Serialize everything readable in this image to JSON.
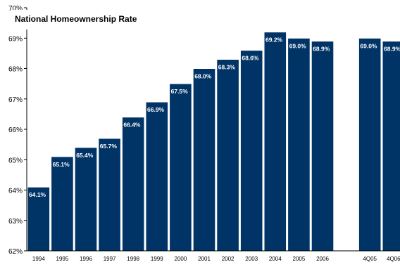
{
  "chart_data": {
    "type": "bar",
    "title": "National Homeownership Rate",
    "ylim": [
      62,
      70
    ],
    "yticks": [
      "62%",
      "63%",
      "64%",
      "65%",
      "66%",
      "67%",
      "68%",
      "69%",
      "70%"
    ],
    "grid": false,
    "categories": [
      "1994",
      "1995",
      "1996",
      "1997",
      "1998",
      "1999",
      "2000",
      "2001",
      "2002",
      "2003",
      "2004",
      "2005",
      "2006",
      "",
      "4Q05",
      "4Q06"
    ],
    "values": [
      64.1,
      65.1,
      65.4,
      65.7,
      66.4,
      66.9,
      67.5,
      68.0,
      68.3,
      68.6,
      69.2,
      69.0,
      68.9,
      null,
      69.0,
      68.9
    ],
    "labels": [
      "64.1%",
      "65.1%",
      "65.4%",
      "65.7%",
      "66.4%",
      "66.9%",
      "67.5%",
      "68.0%",
      "68.3%",
      "68.6%",
      "69.2%",
      "69.0%",
      "68.9%",
      "",
      "69.0%",
      "68.9%"
    ],
    "colors": {
      "bar": "#003366",
      "bar_edge": "#ffffff",
      "label": "#ffffff",
      "axis": "#000000"
    }
  }
}
